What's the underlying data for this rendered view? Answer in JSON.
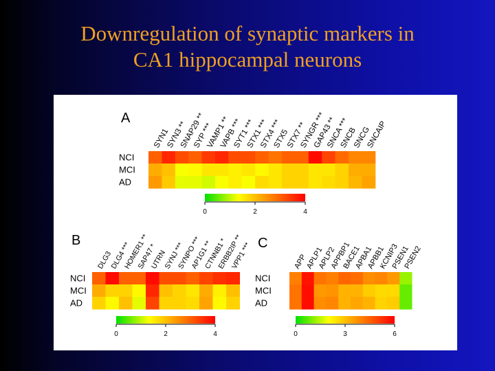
{
  "title": {
    "line1": "Downregulation of synaptic markers in",
    "line2": "CA1 hippocampal neurons"
  },
  "colors": {
    "background_left": "#000000",
    "background_right": "#1416c0",
    "title": "#f0a020",
    "scale": [
      "#00e000",
      "#ffff00",
      "#ff8000",
      "#ff0000"
    ]
  },
  "chart_data": [
    {
      "type": "heatmap",
      "panel": "A",
      "rows": [
        "NCI",
        "MCI",
        "AD"
      ],
      "columns": [
        "SYN1",
        "SYN3 **",
        "SNAP29 **",
        "SYP ***",
        "VAMP1 **",
        "VAPB ***",
        "SYT1 ***",
        "STX1 ***",
        "STX4 ***",
        "STX5",
        "STX7 **",
        "SYNGR ***",
        "GAP43 **",
        "SNCA ***",
        "SNCB",
        "SNCG",
        "SNCAIP"
      ],
      "values": [
        [
          3.0,
          3.6,
          3.2,
          3.0,
          3.4,
          3.6,
          3.2,
          3.2,
          3.0,
          2.8,
          3.0,
          3.0,
          3.9,
          3.3,
          2.9,
          2.6,
          2.6
        ],
        [
          2.2,
          2.0,
          1.3,
          1.4,
          1.6,
          1.6,
          1.5,
          1.6,
          1.4,
          1.6,
          1.8,
          1.8,
          1.6,
          1.6,
          1.8,
          2.2,
          2.2
        ],
        [
          2.4,
          1.9,
          1.2,
          1.2,
          1.1,
          1.3,
          1.5,
          1.3,
          1.7,
          1.6,
          1.8,
          1.8,
          1.6,
          1.7,
          1.8,
          2.1,
          2.3
        ]
      ],
      "scale": {
        "min": 0,
        "max": 4,
        "ticks": [
          "0",
          "2",
          "4"
        ]
      }
    },
    {
      "type": "heatmap",
      "panel": "B",
      "rows": [
        "NCI",
        "MCI",
        "AD"
      ],
      "columns": [
        "DLG3",
        "DLG4 ***",
        "HOMER1 **",
        "SAP47 *",
        "UTRN",
        "SYNJ ***",
        "SYNPO ***",
        "AP1G1 **",
        "CTNNB1 *",
        "ERBB2IP **",
        "VPP1 ***"
      ],
      "values": [
        [
          3.0,
          3.9,
          3.0,
          3.0,
          3.9,
          3.2,
          3.2,
          3.0,
          3.3,
          3.5,
          3.6
        ],
        [
          2.2,
          1.8,
          1.8,
          1.4,
          3.6,
          2.0,
          1.8,
          1.6,
          2.2,
          1.5,
          2.0
        ],
        [
          1.8,
          1.4,
          2.0,
          1.2,
          3.3,
          1.8,
          1.8,
          1.7,
          2.3,
          1.4,
          1.8
        ]
      ],
      "scale": {
        "min": 0,
        "max": 4,
        "ticks": [
          "0",
          "2",
          "4"
        ]
      }
    },
    {
      "type": "heatmap",
      "panel": "C",
      "rows": [
        "NCI",
        "MCI",
        "AD"
      ],
      "columns": [
        "APP",
        "APLP1",
        "APLP2",
        "APPBP1",
        "BACE1",
        "APBA1",
        "APBB1",
        "KCNIP3",
        "PSEN1",
        "PSEN2"
      ],
      "values": [
        [
          4.0,
          5.7,
          4.2,
          4.0,
          4.4,
          4.3,
          3.8,
          3.9,
          3.6,
          1.2
        ],
        [
          4.2,
          5.8,
          3.6,
          3.7,
          3.2,
          3.2,
          2.8,
          2.6,
          2.6,
          0.8
        ],
        [
          4.2,
          5.8,
          3.8,
          3.9,
          3.2,
          3.4,
          3.2,
          2.7,
          2.8,
          0.8
        ]
      ],
      "scale": {
        "min": 0,
        "max": 6,
        "ticks": [
          "0",
          "3",
          "6"
        ]
      }
    }
  ]
}
